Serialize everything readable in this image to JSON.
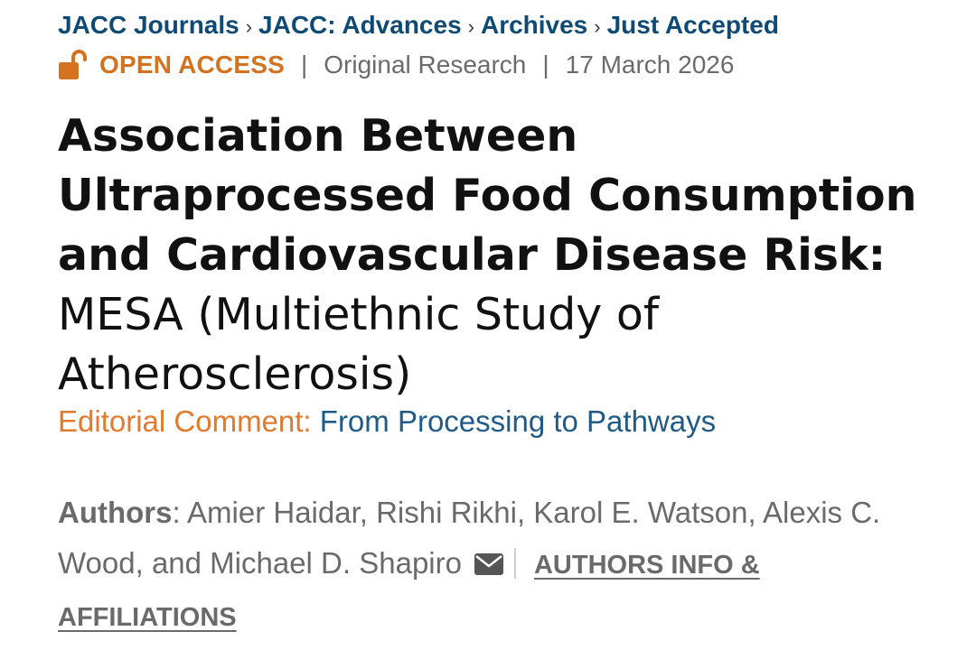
{
  "breadcrumb": {
    "items": [
      "JACC Journals",
      "JACC: Advances",
      "Archives",
      "Just Accepted"
    ],
    "separator": "›"
  },
  "meta": {
    "access_label": "OPEN ACCESS",
    "access_icon": "lock-open-icon",
    "article_type": "Original Research",
    "date": "17 March 2026",
    "divider": "|"
  },
  "title": {
    "bold_part": "Association Between Ultraprocessed Food Consumption and Cardiovascular Disease Risk:",
    "light_part": "MESA (Multiethnic Study of Atherosclerosis)"
  },
  "editorial": {
    "label": "Editorial Comment:",
    "link": "From Processing to Pathways"
  },
  "authors": {
    "label": "Authors",
    "names": ": Amier Haidar, Rishi Rikhi, Karol E. Watson, Alexis C. Wood, and Michael D. Shapiro",
    "email_icon": "mail-icon",
    "info_link": "AUTHORS INFO & AFFILIATIONS"
  },
  "colors": {
    "link_blue": "#0f4a75",
    "accent_orange": "#d4731f",
    "text_gray": "#6a6a6a",
    "title_black": "#111111"
  }
}
